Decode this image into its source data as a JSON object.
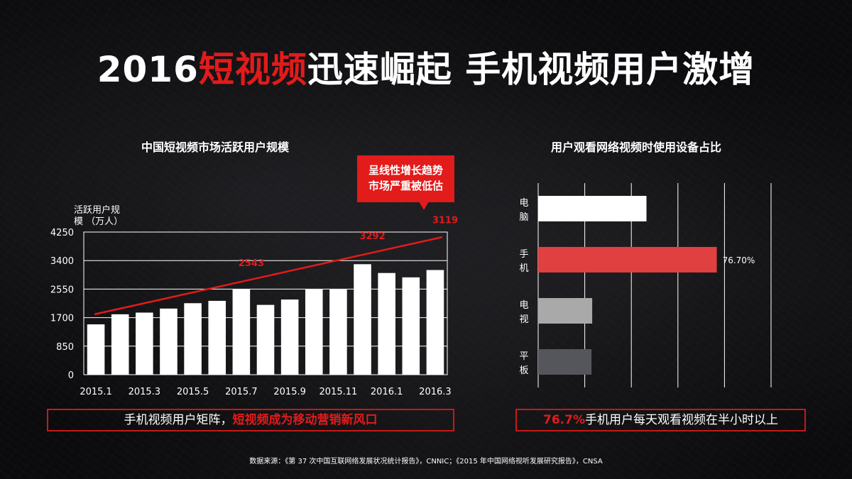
{
  "header": {
    "title_prefix": "2016",
    "title_highlight": "短视频",
    "title_suffix": "迅速崛起 手机视频用户激增"
  },
  "left_chart": {
    "title": "中国短视频市场活跃用户规模",
    "ylabel_line1": "活跃用户规",
    "ylabel_line2": "模 （万人）",
    "callout_line1": "呈线性增长趋势",
    "callout_line2": "市场严重被低估"
  },
  "right_chart": {
    "title": "用户观看网络视频时使用设备占比"
  },
  "banners": {
    "left_normal": "手机视频用户矩阵，",
    "left_red": "短视频成为移动营销新风口",
    "right_red": "76.7%",
    "right_normal": "手机用户每天观看视频在半小时以上"
  },
  "footer": {
    "source": "数据来源：《第 37 次中国互联网络发展状况统计报告》，CNNIC；《2015 年中国网络视听发展研究报告》，CNSA"
  },
  "colors": {
    "accent_red": "#e21b1b",
    "bar_white": "#ffffff",
    "bar_phone": "#e04040",
    "bar_tv": "#a9a9a9",
    "bar_tablet": "#55555c"
  },
  "chart_data": [
    {
      "type": "bar",
      "title": "中国短视频市场活跃用户规模",
      "ylabel": "活跃用户规模 （万人）",
      "ylim": [
        0,
        4250
      ],
      "yticks": [
        "0",
        "850",
        "1700",
        "2550",
        "3400",
        "4250"
      ],
      "categories": [
        "2015.1",
        "2015.2",
        "2015.3",
        "2015.4",
        "2015.5",
        "2015.6",
        "2015.7",
        "2015.8",
        "2015.9",
        "2015.10",
        "2015.11",
        "2015.12",
        "2016.1",
        "2016.2",
        "2016.3"
      ],
      "xtick_labels": [
        "2015.1",
        "2015.3",
        "2015.5",
        "2015.7",
        "2015.9",
        "2015.11",
        "2016.1",
        "2016.3"
      ],
      "values": [
        1500,
        1800,
        1850,
        1970,
        2130,
        2200,
        2543,
        2080,
        2240,
        2540,
        2540,
        3292,
        3030,
        2900,
        3119
      ],
      "data_labels": [
        {
          "index": 6,
          "text": "2543"
        },
        {
          "index": 11,
          "text": "3292"
        },
        {
          "index": 14,
          "text": "3119"
        }
      ],
      "trendline": {
        "start": 1800,
        "end": 4100
      },
      "grid": true
    },
    {
      "type": "bar",
      "orientation": "horizontal",
      "title": "用户观看网络视频时使用设备占比",
      "categories": [
        "电脑",
        "手机",
        "电视",
        "平板"
      ],
      "values": [
        46.5,
        76.7,
        23.2,
        22.9
      ],
      "xlim": [
        0,
        100
      ],
      "data_labels": [
        {
          "index": 1,
          "text": "76.70%"
        }
      ],
      "grid": true
    }
  ]
}
